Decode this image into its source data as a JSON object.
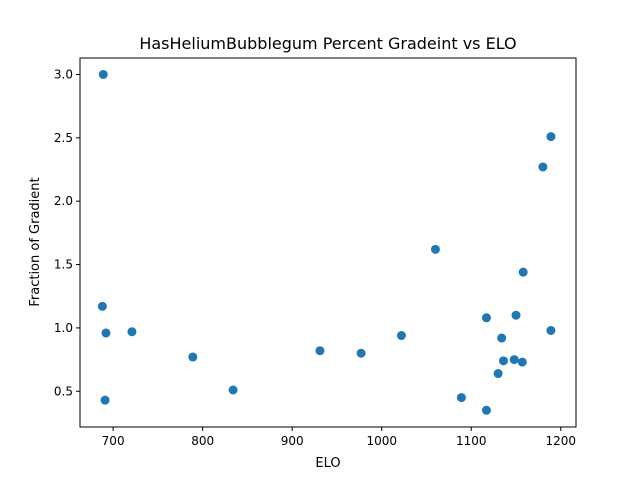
{
  "chart_data": {
    "type": "scatter",
    "title": "HasHeliumBubblegum Percent Gradeint vs ELO",
    "xlabel": "ELO",
    "ylabel": "Fraction of Gradient",
    "xlim": [
      663,
      1217
    ],
    "ylim": [
      0.218,
      3.13
    ],
    "xticks": [
      700,
      800,
      900,
      1000,
      1100,
      1200
    ],
    "yticks": [
      0.5,
      1.0,
      1.5,
      2.0,
      2.5,
      3.0
    ],
    "xtick_labels": [
      "700",
      "800",
      "900",
      "1000",
      "1100",
      "1200"
    ],
    "ytick_labels": [
      "0.5",
      "1.0",
      "1.5",
      "2.0",
      "2.5",
      "3.0"
    ],
    "grid": false,
    "legend": "none",
    "marker_color": "#1f77b4",
    "points": [
      {
        "x": 689,
        "y": 3.0
      },
      {
        "x": 688,
        "y": 1.17
      },
      {
        "x": 692,
        "y": 0.96
      },
      {
        "x": 691,
        "y": 0.43
      },
      {
        "x": 721,
        "y": 0.97
      },
      {
        "x": 789,
        "y": 0.77
      },
      {
        "x": 834,
        "y": 0.51
      },
      {
        "x": 931,
        "y": 0.82
      },
      {
        "x": 977,
        "y": 0.8
      },
      {
        "x": 1022,
        "y": 0.94
      },
      {
        "x": 1060,
        "y": 1.62
      },
      {
        "x": 1089,
        "y": 0.45
      },
      {
        "x": 1117,
        "y": 0.35
      },
      {
        "x": 1117,
        "y": 1.08
      },
      {
        "x": 1130,
        "y": 0.64
      },
      {
        "x": 1134,
        "y": 0.92
      },
      {
        "x": 1136,
        "y": 0.74
      },
      {
        "x": 1148,
        "y": 0.75
      },
      {
        "x": 1150,
        "y": 1.1
      },
      {
        "x": 1157,
        "y": 0.73
      },
      {
        "x": 1158,
        "y": 1.44
      },
      {
        "x": 1180,
        "y": 2.27
      },
      {
        "x": 1189,
        "y": 2.51
      },
      {
        "x": 1189,
        "y": 0.98
      }
    ]
  }
}
